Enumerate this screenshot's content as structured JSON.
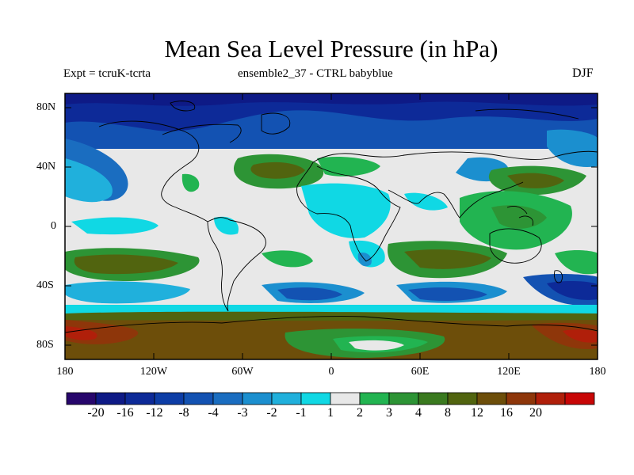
{
  "header": {
    "title": "Mean Sea Level Pressure (in hPa)",
    "left": "Expt = tcruK-tcrta",
    "center": "ensemble2_37 - CTRL babyblue",
    "right": "DJF"
  },
  "axes": {
    "y_ticks": [
      "80N",
      "40N",
      "0",
      "40S",
      "80S"
    ],
    "x_ticks": [
      "180",
      "120W",
      "60W",
      "0",
      "60E",
      "120E",
      "180"
    ]
  },
  "colorbar": {
    "labels": [
      "-20",
      "-16",
      "-12",
      "-8",
      "-4",
      "-3",
      "-2",
      "-1",
      "1",
      "2",
      "3",
      "4",
      "8",
      "12",
      "16",
      "20"
    ],
    "colors": [
      "#27066c",
      "#0e1a86",
      "#0d2a98",
      "#0d3da6",
      "#1352b2",
      "#1a6dc0",
      "#1b8fcf",
      "#20b0dc",
      "#10d8e4",
      "#e8e8e8",
      "#22b451",
      "#2d9435",
      "#3a7a1f",
      "#51640f",
      "#6d4e0a",
      "#8e360a",
      "#b01f0a",
      "#c80606"
    ]
  },
  "map": {
    "projection": "equirectangular",
    "lon_range": [
      -180,
      180
    ],
    "lat_range": [
      -90,
      90
    ]
  }
}
